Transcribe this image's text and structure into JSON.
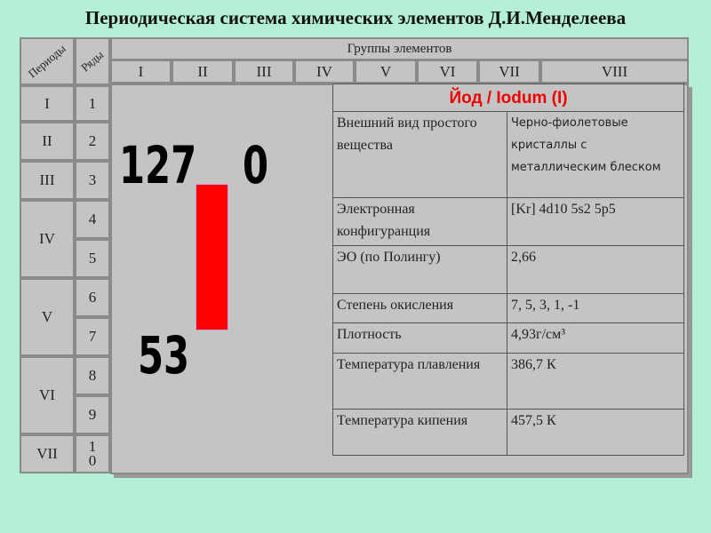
{
  "title": "Периодическая система химических элементов Д.И.Менделеева",
  "headers": {
    "periods": "Периоды",
    "rows": "Ряды",
    "groups": "Группы элементов"
  },
  "groups": [
    "I",
    "II",
    "III",
    "IV",
    "V",
    "VI",
    "VII",
    "VIII"
  ],
  "periods": [
    "I",
    "II",
    "III",
    "IV",
    "V",
    "VI",
    "VII"
  ],
  "rows": [
    "1",
    "2",
    "3",
    "4",
    "5",
    "6",
    "7",
    "8",
    "9",
    "10"
  ],
  "element": {
    "mass": "127",
    "valence_top": "0",
    "number": "53",
    "color": "#ff0000"
  },
  "card": {
    "heading": "Йод / Iodum (I)",
    "rows": [
      {
        "label": "Внешний вид простого вещества",
        "value": "Черно-фиолетовые кристаллы с металлическим блеском"
      },
      {
        "label": "Электронная конфигуранция",
        "value": "[Kr] 4d10 5s2 5p5"
      },
      {
        "label": "ЭО (по Полингу)",
        "value": "2,66"
      },
      {
        "label": "Степень окисления",
        "value": "7, 5, 3, 1, -1"
      },
      {
        "label": "Плотность",
        "value": "4,93г/см³"
      },
      {
        "label": "Температура плавления",
        "value": "386,7 К"
      },
      {
        "label": "Температура кипения",
        "value": "457,5 К"
      }
    ]
  }
}
